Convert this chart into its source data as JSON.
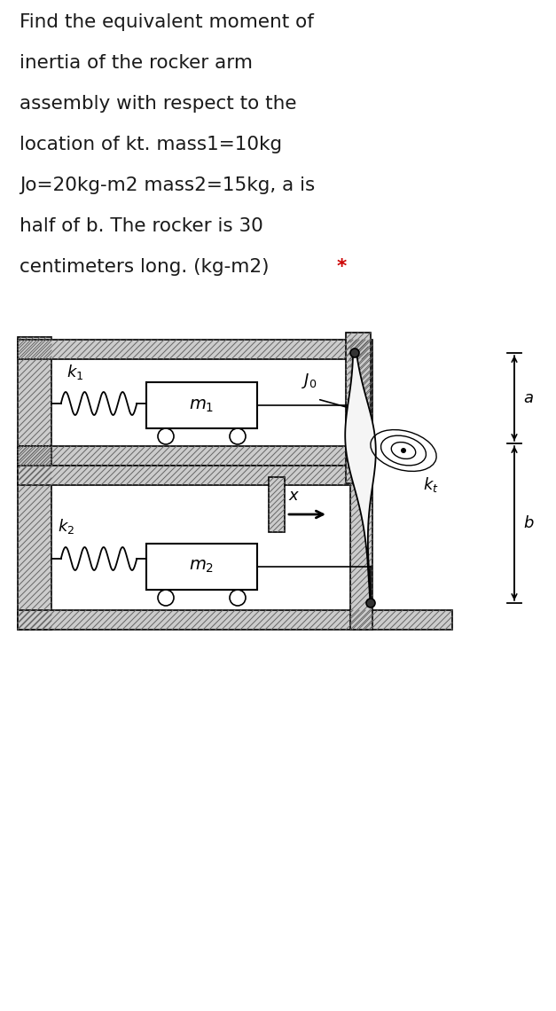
{
  "title_lines": [
    "Find the equivalent moment of",
    "inertia of the rocker arm",
    "assembly with respect to the",
    "location of kt. mass1=10kg",
    "Jo=20kg-m2 mass2=15kg, a is",
    "half of b. The rocker is 30",
    "centimeters long. (kg-m2) "
  ],
  "title_color": "#1a1a1a",
  "star_color": "#cc0000",
  "bg_color": "#ffffff",
  "hatch_facecolor": "#d0d0d0",
  "hatch_linecolor": "#666666",
  "fig_width": 6.27,
  "fig_height": 11.4,
  "title_fontsize": 15.5,
  "label_fontsize": 13
}
